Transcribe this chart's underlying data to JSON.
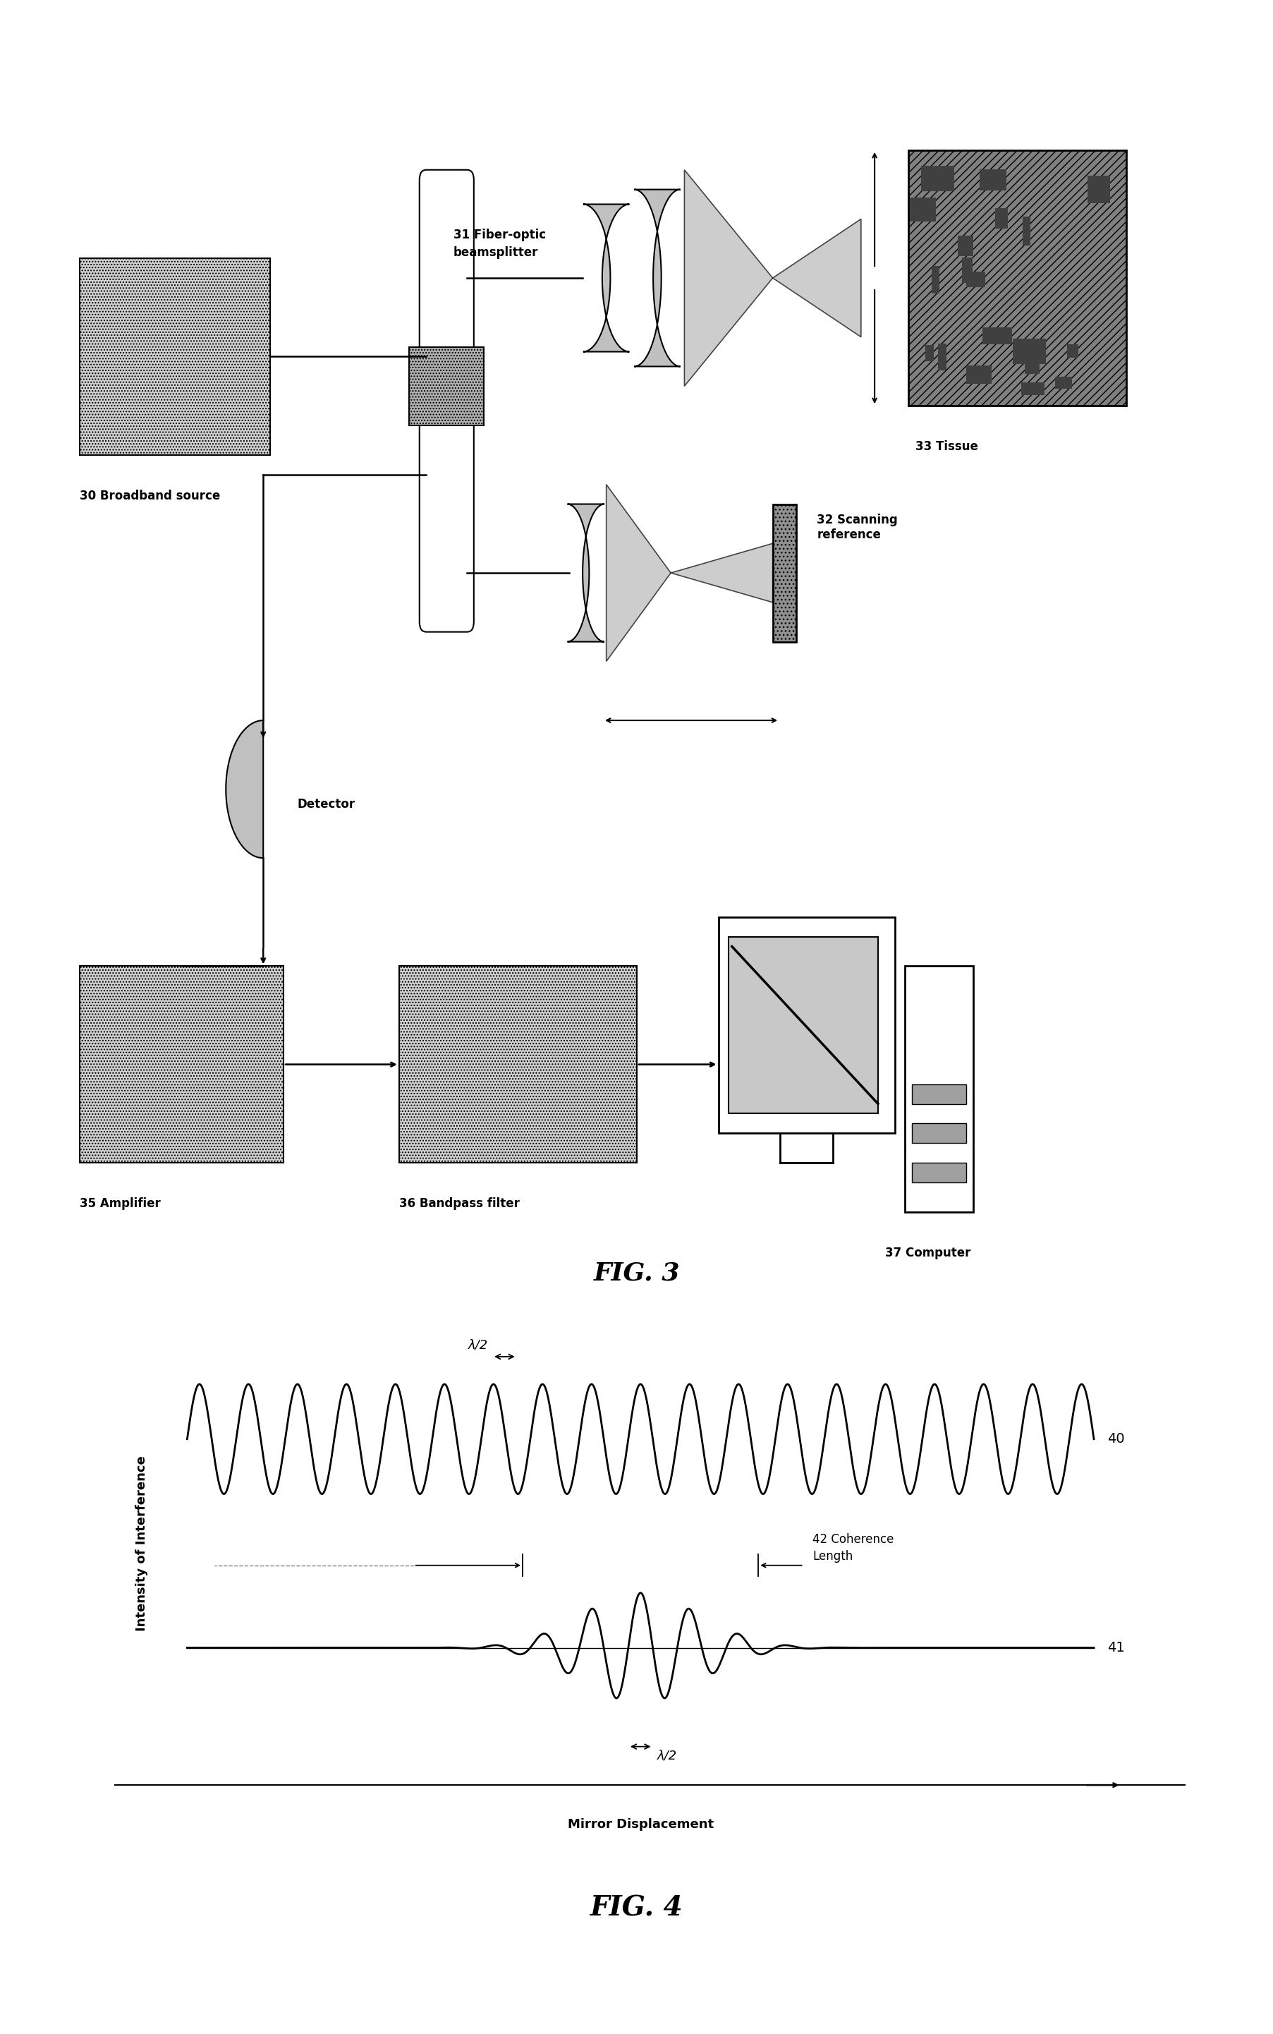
{
  "fig3_title": "FIG. 3",
  "fig4_title": "FIG. 4",
  "labels": {
    "broadband": "30 Broadband source",
    "beamsplitter": "31 Fiber-optic\nbeamsplitter",
    "tissue": "33 Tissue",
    "scanning_ref": "32 Scanning\nreference",
    "detector": "Detector",
    "amplifier": "35 Amplifier",
    "bandpass": "36 Bandpass filter",
    "computer": "37 Computer"
  },
  "fig4_labels": {
    "wave40": "40",
    "wave41": "41",
    "coherence": "42 Coherence\nLength",
    "mirror_disp": "Mirror Displacement",
    "ylabel": "Intensity of Interference",
    "lambda_half1": "λ/2",
    "lambda_half2": "λ/2"
  },
  "bg_color": "#ffffff",
  "line_color": "#000000"
}
